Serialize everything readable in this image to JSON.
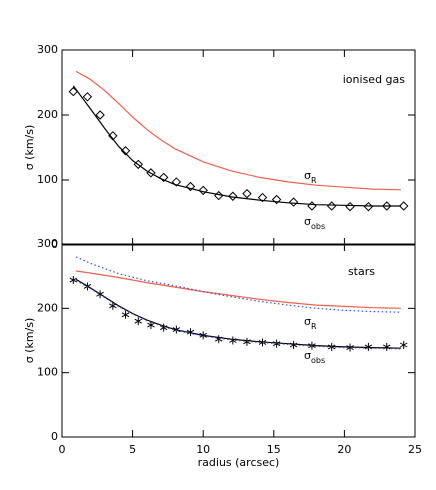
{
  "chart_data": [
    {
      "type": "line",
      "ylabel": "σ (km/s)",
      "annotation": "ionised gas",
      "curve_labels": [
        {
          "symbol": "σ",
          "sub": "R"
        },
        {
          "symbol": "σ",
          "sub": "obs"
        }
      ],
      "xlim": [
        0,
        25
      ],
      "xticks": [
        0,
        5,
        10,
        15,
        20,
        25
      ],
      "show_xtick_labels": false,
      "ylim": [
        0,
        300
      ],
      "yticks": [
        0,
        100,
        200,
        300
      ],
      "series": [
        {
          "style": "marker",
          "marker": "diamond",
          "color": "#000000",
          "x": [
            0.8,
            1.8,
            2.7,
            3.6,
            4.5,
            5.4,
            6.3,
            7.2,
            8.1,
            9.1,
            10.0,
            11.1,
            12.1,
            13.1,
            14.2,
            15.2,
            16.4,
            17.7,
            19.1,
            20.4,
            21.7,
            23.0,
            24.2
          ],
          "values": [
            236,
            228,
            200,
            168,
            145,
            124,
            111,
            104,
            97,
            90,
            84,
            76,
            75,
            79,
            73,
            70,
            66,
            60,
            60,
            59,
            59,
            60,
            60
          ]
        },
        {
          "style": "solid",
          "color": "#000000",
          "x": [
            0.8,
            2,
            3,
            4,
            5,
            6,
            7,
            8,
            10,
            12,
            14,
            16,
            18,
            20,
            22,
            24
          ],
          "values": [
            245,
            210,
            180,
            152,
            130,
            114,
            102,
            93,
            82,
            74,
            69,
            65,
            62,
            61,
            60,
            60
          ]
        },
        {
          "style": "solid",
          "color": "#f0604a",
          "x": [
            1,
            2,
            3,
            4,
            5,
            6,
            7,
            8,
            10,
            12,
            14,
            16,
            18,
            20,
            22,
            24
          ],
          "values": [
            267,
            255,
            238,
            218,
            197,
            178,
            162,
            148,
            128,
            114,
            104,
            97,
            92,
            89,
            86,
            85
          ]
        }
      ]
    },
    {
      "type": "line",
      "ylabel": "σ (km/s)",
      "xlabel": "radius (arcsec)",
      "annotation": "stars",
      "curve_labels": [
        {
          "symbol": "σ",
          "sub": "R"
        },
        {
          "symbol": "σ",
          "sub": "obs"
        }
      ],
      "xlim": [
        0,
        25
      ],
      "xticks": [
        0,
        5,
        10,
        15,
        20,
        25
      ],
      "show_xtick_labels": true,
      "ylim": [
        0,
        300
      ],
      "yticks": [
        0,
        100,
        200,
        300
      ],
      "series": [
        {
          "style": "marker",
          "marker": "asterisk",
          "color": "#000000",
          "x": [
            0.8,
            1.8,
            2.7,
            3.6,
            4.5,
            5.4,
            6.3,
            7.2,
            8.1,
            9.1,
            10.0,
            11.1,
            12.1,
            13.1,
            14.2,
            15.2,
            16.4,
            17.7,
            19.1,
            20.4,
            21.7,
            23.0,
            24.2
          ],
          "values": [
            244,
            234,
            222,
            204,
            190,
            180,
            174,
            170,
            167,
            163,
            158,
            152,
            150,
            148,
            147,
            145,
            143,
            142,
            140,
            139,
            140,
            140,
            143
          ]
        },
        {
          "style": "solid",
          "color": "#000000",
          "x": [
            1,
            2,
            3,
            4,
            5,
            6,
            7,
            8,
            10,
            12,
            14,
            16,
            18,
            20,
            22,
            24
          ],
          "values": [
            245,
            232,
            218,
            204,
            192,
            182,
            174,
            167,
            158,
            152,
            148,
            145,
            142,
            140,
            139,
            138
          ]
        },
        {
          "style": "dotted",
          "color": "#3050e0",
          "x": [
            1,
            2,
            3,
            4,
            5,
            6,
            7,
            8,
            10,
            12,
            14,
            16,
            18,
            20,
            22,
            24
          ],
          "values": [
            243,
            231,
            217,
            203,
            191,
            181,
            173,
            166,
            157,
            151,
            147,
            144,
            141,
            139,
            138,
            137
          ]
        },
        {
          "style": "solid",
          "color": "#f0604a",
          "x": [
            1,
            2,
            4,
            6,
            8,
            10,
            12,
            14,
            16,
            18,
            20,
            22,
            24
          ],
          "values": [
            258,
            255,
            248,
            240,
            233,
            226,
            220,
            214,
            209,
            205,
            203,
            201,
            200
          ]
        },
        {
          "style": "dotted",
          "color": "#3050e0",
          "x": [
            1,
            2,
            4,
            6,
            8,
            10,
            12,
            14,
            16,
            18,
            20,
            22,
            24
          ],
          "values": [
            280,
            270,
            254,
            243,
            235,
            226,
            218,
            211,
            205,
            200,
            197,
            195,
            194
          ]
        }
      ]
    }
  ]
}
